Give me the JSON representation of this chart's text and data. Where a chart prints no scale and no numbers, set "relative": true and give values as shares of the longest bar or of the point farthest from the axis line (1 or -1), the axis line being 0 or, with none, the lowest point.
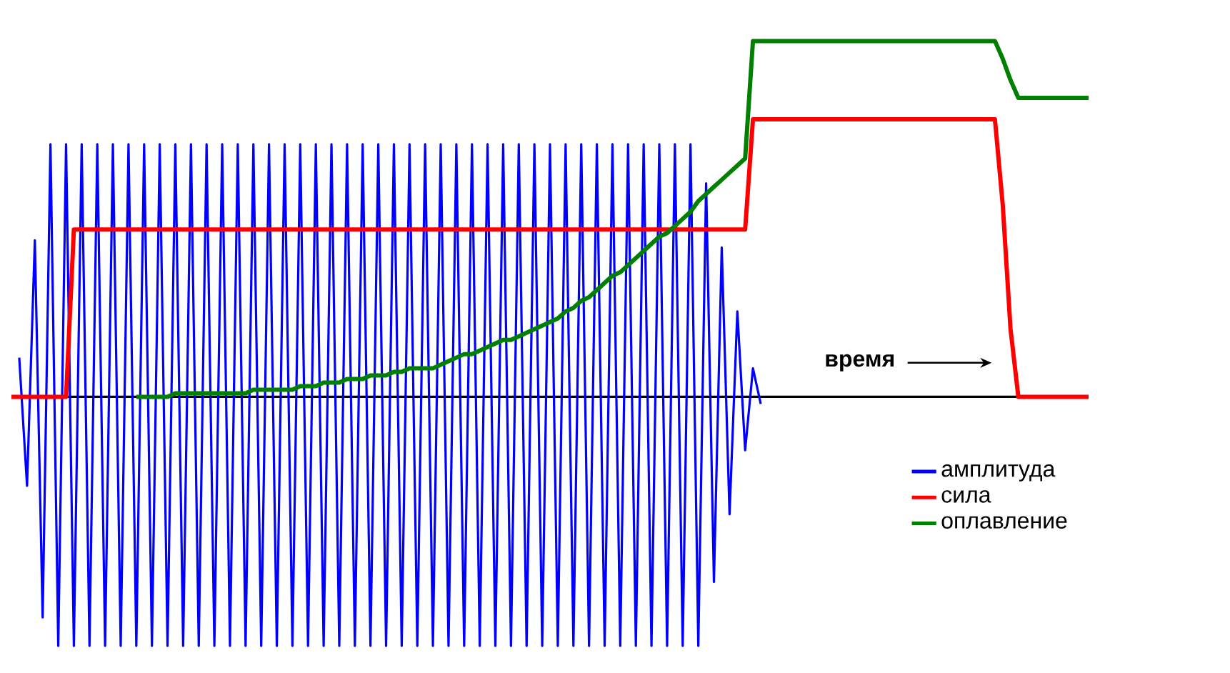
{
  "chart_data": {
    "type": "line",
    "relative": true,
    "tick_labels": false,
    "legend": "bottom right",
    "annotations": [
      "время"
    ],
    "categories": [
      null,
      null,
      null,
      null,
      null,
      null,
      null,
      null,
      null,
      null,
      null,
      null,
      null,
      null,
      null,
      null,
      null,
      null,
      null,
      null,
      null,
      null,
      null,
      null,
      null,
      null,
      null,
      null,
      null,
      null,
      null,
      null,
      null,
      null,
      null,
      null,
      null,
      null,
      null,
      null,
      null,
      null,
      null,
      null,
      null,
      null,
      null,
      null,
      null,
      null,
      null,
      null,
      null,
      null,
      null,
      null,
      null,
      null,
      null,
      null,
      null,
      null,
      null,
      null,
      null,
      null,
      null,
      null,
      null,
      null,
      null,
      null,
      null,
      null,
      null,
      null,
      null,
      null,
      null,
      null,
      null,
      null,
      null,
      null,
      null,
      null,
      null,
      null,
      null,
      null,
      null,
      null,
      null,
      null,
      null,
      null,
      null,
      null,
      null,
      null,
      null,
      null,
      null,
      null,
      null,
      null,
      null,
      null,
      null,
      null,
      null,
      null,
      null,
      null,
      null,
      null,
      null,
      null,
      null,
      null,
      null,
      null,
      null,
      null,
      null,
      null,
      null,
      null,
      null,
      null,
      null,
      null,
      null,
      null,
      null,
      null,
      null,
      null,
      null
    ],
    "series": [
      {
        "name": "амплитуда",
        "color": "#0000ff",
        "values": [
          null,
          0.11,
          -0.25,
          0.44,
          -0.62,
          0.71,
          -0.7,
          0.71,
          -0.7,
          0.71,
          -0.7,
          0.71,
          -0.7,
          0.71,
          -0.7,
          0.71,
          -0.7,
          0.71,
          -0.7,
          0.71,
          -0.7,
          0.71,
          -0.7,
          0.71,
          -0.7,
          0.71,
          -0.7,
          0.71,
          -0.7,
          0.71,
          -0.7,
          0.71,
          -0.7,
          0.71,
          -0.7,
          0.71,
          -0.7,
          0.71,
          -0.7,
          0.71,
          -0.7,
          0.71,
          -0.7,
          0.71,
          -0.7,
          0.71,
          -0.7,
          0.71,
          -0.7,
          0.71,
          -0.7,
          0.71,
          -0.7,
          0.71,
          -0.7,
          0.71,
          -0.7,
          0.71,
          -0.7,
          0.71,
          -0.7,
          0.71,
          -0.7,
          0.71,
          -0.7,
          0.71,
          -0.7,
          0.71,
          -0.7,
          0.71,
          -0.7,
          0.71,
          -0.7,
          0.71,
          -0.7,
          0.71,
          -0.7,
          0.71,
          -0.7,
          0.71,
          -0.7,
          0.71,
          -0.7,
          0.71,
          -0.7,
          0.71,
          -0.7,
          0.71,
          -0.7,
          0.6,
          -0.52,
          0.42,
          -0.33,
          0.24,
          -0.15,
          0.08,
          -0.02,
          null,
          null,
          null,
          null,
          null,
          null,
          null,
          null,
          null,
          null,
          null,
          null,
          null,
          null,
          null,
          null,
          null,
          null,
          null,
          null,
          null,
          null,
          null,
          null,
          null,
          null,
          null,
          null,
          null,
          null,
          null,
          null,
          null,
          null,
          null,
          null,
          null,
          null,
          null,
          null,
          null,
          null
        ]
      },
      {
        "name": "сила",
        "color": "#ff0000",
        "values": [
          0,
          0,
          0,
          0,
          0,
          0,
          0,
          0,
          0.47,
          0.47,
          0.47,
          0.47,
          0.47,
          0.47,
          0.47,
          0.47,
          0.47,
          0.47,
          0.47,
          0.47,
          0.47,
          0.47,
          0.47,
          0.47,
          0.47,
          0.47,
          0.47,
          0.47,
          0.47,
          0.47,
          0.47,
          0.47,
          0.47,
          0.47,
          0.47,
          0.47,
          0.47,
          0.47,
          0.47,
          0.47,
          0.47,
          0.47,
          0.47,
          0.47,
          0.47,
          0.47,
          0.47,
          0.47,
          0.47,
          0.47,
          0.47,
          0.47,
          0.47,
          0.47,
          0.47,
          0.47,
          0.47,
          0.47,
          0.47,
          0.47,
          0.47,
          0.47,
          0.47,
          0.47,
          0.47,
          0.47,
          0.47,
          0.47,
          0.47,
          0.47,
          0.47,
          0.47,
          0.47,
          0.47,
          0.47,
          0.47,
          0.47,
          0.47,
          0.47,
          0.47,
          0.47,
          0.47,
          0.47,
          0.47,
          0.47,
          0.47,
          0.47,
          0.47,
          0.47,
          0.47,
          0.47,
          0.47,
          0.47,
          0.47,
          0.47,
          0.78,
          0.78,
          0.78,
          0.78,
          0.78,
          0.78,
          0.78,
          0.78,
          0.78,
          0.78,
          0.78,
          0.78,
          0.78,
          0.78,
          0.78,
          0.78,
          0.78,
          0.78,
          0.78,
          0.78,
          0.78,
          0.78,
          0.78,
          0.78,
          0.78,
          0.78,
          0.78,
          0.78,
          0.78,
          0.78,
          0.78,
          0.78,
          0.54,
          0.19,
          0,
          0,
          0,
          0,
          0,
          0,
          0,
          0,
          0,
          0
        ]
      },
      {
        "name": "оплавление",
        "color": "#008000",
        "values": [
          null,
          null,
          null,
          null,
          null,
          null,
          null,
          null,
          null,
          null,
          null,
          null,
          null,
          null,
          null,
          null,
          0,
          0,
          0,
          0,
          0,
          0.01,
          0.01,
          0.01,
          0.01,
          0.01,
          0.01,
          0.01,
          0.01,
          0.01,
          0.01,
          0.02,
          0.02,
          0.02,
          0.02,
          0.02,
          0.02,
          0.03,
          0.03,
          0.03,
          0.04,
          0.04,
          0.04,
          0.05,
          0.05,
          0.05,
          0.06,
          0.06,
          0.06,
          0.07,
          0.07,
          0.08,
          0.08,
          0.08,
          0.08,
          0.09,
          0.1,
          0.11,
          0.12,
          0.12,
          0.13,
          0.14,
          0.15,
          0.16,
          0.16,
          0.17,
          0.18,
          0.19,
          0.2,
          0.21,
          0.22,
          0.24,
          0.25,
          0.27,
          0.28,
          0.3,
          0.32,
          0.34,
          0.35,
          0.37,
          0.39,
          0.41,
          0.43,
          0.45,
          0.46,
          0.48,
          0.5,
          0.52,
          0.55,
          0.57,
          0.59,
          0.61,
          0.63,
          0.65,
          0.67,
          1.0,
          1.0,
          1.0,
          1.0,
          1.0,
          1.0,
          1.0,
          1.0,
          1.0,
          1.0,
          1.0,
          1.0,
          1.0,
          1.0,
          1.0,
          1.0,
          1.0,
          1.0,
          1.0,
          1.0,
          1.0,
          1.0,
          1.0,
          1.0,
          1.0,
          1.0,
          1.0,
          1.0,
          1.0,
          1.0,
          1.0,
          1.0,
          0.95,
          0.89,
          0.84,
          0.84,
          0.84,
          0.84,
          0.84,
          0.84,
          0.84,
          0.84,
          0.84,
          0.84
        ]
      }
    ]
  }
}
